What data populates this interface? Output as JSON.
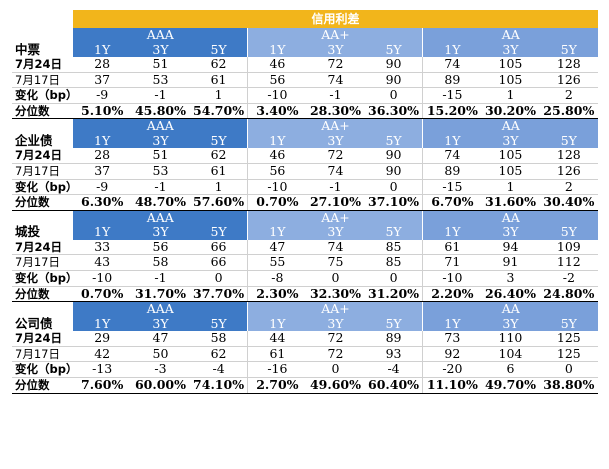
{
  "title": "信用利差",
  "groups": [
    "AAA",
    "AA+",
    "AA"
  ],
  "tenors": [
    "1Y",
    "3Y",
    "5Y"
  ],
  "sections": [
    {
      "name": "中票",
      "rows": [
        {
          "label": "7月24日",
          "cells": [
            "28",
            "51",
            "62",
            "46",
            "72",
            "90",
            "74",
            "105",
            "128"
          ]
        },
        {
          "label": "7月17日",
          "cells": [
            "37",
            "53",
            "61",
            "56",
            "74",
            "90",
            "89",
            "105",
            "126"
          ]
        },
        {
          "label": "变化（bp）",
          "cells": [
            "-9",
            "-1",
            "1",
            "-10",
            "-1",
            "0",
            "-15",
            "1",
            "2"
          ]
        },
        {
          "label": "分位数",
          "cells": [
            "5.10%",
            "45.80%",
            "54.70%",
            "3.40%",
            "28.30%",
            "36.30%",
            "15.20%",
            "30.20%",
            "25.80%"
          ]
        }
      ]
    },
    {
      "name": "企业债",
      "rows": [
        {
          "label": "7月24日",
          "cells": [
            "28",
            "51",
            "62",
            "46",
            "72",
            "90",
            "74",
            "105",
            "128"
          ]
        },
        {
          "label": "7月17日",
          "cells": [
            "37",
            "53",
            "61",
            "56",
            "74",
            "90",
            "89",
            "105",
            "126"
          ]
        },
        {
          "label": "变化（bp）",
          "cells": [
            "-9",
            "-1",
            "1",
            "-10",
            "-1",
            "0",
            "-15",
            "1",
            "2"
          ]
        },
        {
          "label": "分位数",
          "cells": [
            "6.30%",
            "48.70%",
            "57.60%",
            "0.70%",
            "27.10%",
            "37.10%",
            "6.70%",
            "31.60%",
            "30.40%"
          ]
        }
      ]
    },
    {
      "name": "城投",
      "rows": [
        {
          "label": "7月24日",
          "cells": [
            "33",
            "56",
            "66",
            "47",
            "74",
            "85",
            "61",
            "94",
            "109"
          ]
        },
        {
          "label": "7月17日",
          "cells": [
            "43",
            "58",
            "66",
            "55",
            "75",
            "85",
            "71",
            "91",
            "112"
          ]
        },
        {
          "label": "变化（bp）",
          "cells": [
            "-10",
            "-1",
            "0",
            "-8",
            "0",
            "0",
            "-10",
            "3",
            "-2"
          ]
        },
        {
          "label": "分位数",
          "cells": [
            "0.70%",
            "31.70%",
            "37.70%",
            "2.30%",
            "32.30%",
            "31.20%",
            "2.20%",
            "26.40%",
            "24.80%"
          ]
        }
      ]
    },
    {
      "name": "公司债",
      "rows": [
        {
          "label": "7月24日",
          "cells": [
            "29",
            "47",
            "58",
            "44",
            "72",
            "89",
            "73",
            "110",
            "125"
          ]
        },
        {
          "label": "7月17日",
          "cells": [
            "42",
            "50",
            "62",
            "61",
            "72",
            "93",
            "92",
            "104",
            "125"
          ]
        },
        {
          "label": "变化（bp）",
          "cells": [
            "-13",
            "-3",
            "-4",
            "-16",
            "0",
            "-4",
            "-20",
            "6",
            "0"
          ]
        },
        {
          "label": "分位数",
          "cells": [
            "7.60%",
            "60.00%",
            "74.10%",
            "2.70%",
            "49.60%",
            "60.40%",
            "11.10%",
            "49.70%",
            "38.80%"
          ]
        }
      ]
    }
  ]
}
